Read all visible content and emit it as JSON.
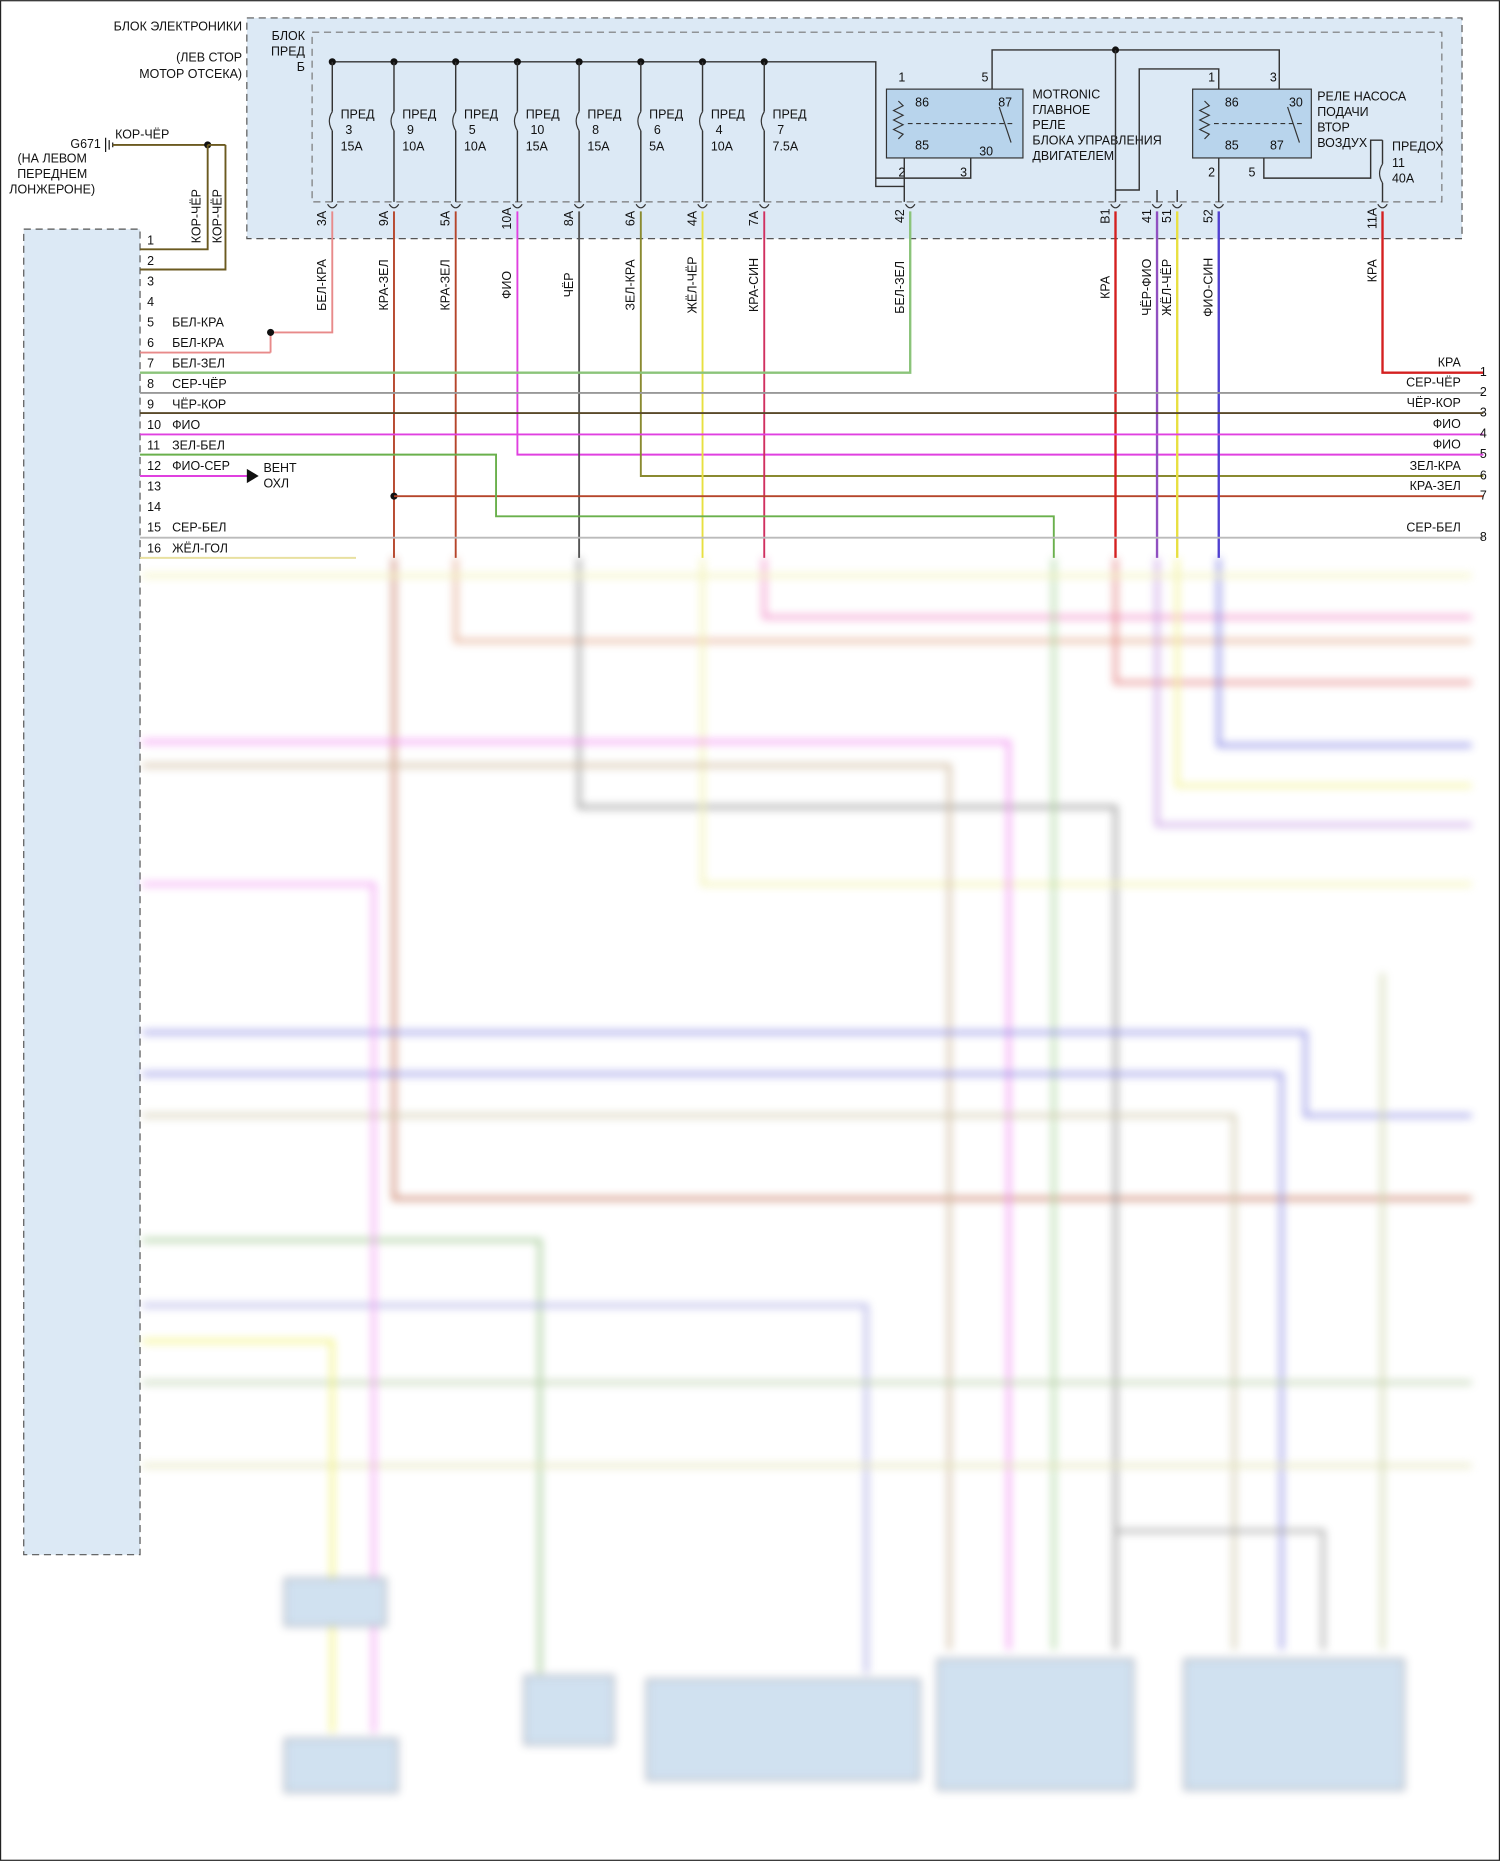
{
  "header": {
    "block_lines": [
      "БЛОК ЭЛЕКТРОНИКИ",
      "(ЛЕВ СТОР",
      "МОТОР ОТСЕКА)"
    ],
    "fuse_box_lines": [
      "БЛОК",
      "ПРЕД",
      "Б"
    ]
  },
  "ground": {
    "id": "G671",
    "location_lines": [
      "(НА ЛЕВОМ",
      "ПЕРЕДНЕМ",
      "ЛОНЖЕРОНЕ)"
    ],
    "wire": "КОР-ЧЁР",
    "branch_wires": [
      "КОР-ЧЁР",
      "КОР-ЧЁР"
    ]
  },
  "fuses": [
    {
      "label": "ПРЕД",
      "number": "3",
      "rating": "15A",
      "pin": "3A",
      "wire": "БЕЛ-КРА"
    },
    {
      "label": "ПРЕД",
      "number": "9",
      "rating": "10A",
      "pin": "9A",
      "wire": "КРА-ЗЕЛ"
    },
    {
      "label": "ПРЕД",
      "number": "5",
      "rating": "10A",
      "pin": "5A",
      "wire": "КРА-ЗЕЛ"
    },
    {
      "label": "ПРЕД",
      "number": "10",
      "rating": "15A",
      "pin": "10A",
      "wire": "ФИО"
    },
    {
      "label": "ПРЕД",
      "number": "8",
      "rating": "15A",
      "pin": "8A",
      "wire": "ЧЁР"
    },
    {
      "label": "ПРЕД",
      "number": "6",
      "rating": "5A",
      "pin": "6A",
      "wire": "ЗЕЛ-КРА"
    },
    {
      "label": "ПРЕД",
      "number": "4",
      "rating": "10A",
      "pin": "4A",
      "wire": "ЖЁЛ-ЧЁР"
    },
    {
      "label": "ПРЕД",
      "number": "7",
      "rating": "7.5A",
      "pin": "7A",
      "wire": "КРА-СИН"
    }
  ],
  "relays": [
    {
      "name_lines": [
        "MOTRONIC",
        "ГЛАВНОЕ",
        "РЕЛЕ",
        "БЛОКА УПРАВЛЕНИЯ",
        "ДВИГАТЕЛЕМ"
      ],
      "pins": [
        "1",
        "5",
        "86",
        "87",
        "85",
        "30",
        "2",
        "3"
      ]
    },
    {
      "name_lines": [
        "РЕЛЕ НАСОСА",
        "ПОДАЧИ",
        "ВТОР",
        "ВОЗДУХ"
      ],
      "pins": [
        "1",
        "3",
        "86",
        "30",
        "85",
        "87",
        "2",
        "5"
      ]
    }
  ],
  "main_fuse": {
    "label": "ПРЕДОХ",
    "number": "11",
    "rating": "40A",
    "pin": "11A",
    "wire": "КРА"
  },
  "outputs": [
    {
      "pin": "42",
      "wire": "БЕЛ-ЗЕЛ"
    },
    {
      "pin": "B1",
      "wire": "КРА"
    },
    {
      "pin": "41",
      "wire": "ЧЁР-ФИО"
    },
    {
      "pin": "51",
      "wire": "ЖЁЛ-ЧЁР"
    },
    {
      "pin": "52",
      "wire": "ФИО-СИН"
    }
  ],
  "left_connector": {
    "pins": [
      {
        "number": "1"
      },
      {
        "number": "2"
      },
      {
        "number": "3"
      },
      {
        "number": "4"
      },
      {
        "number": "5",
        "wire": "БЕЛ-КРА"
      },
      {
        "number": "6",
        "wire": "БЕЛ-КРА"
      },
      {
        "number": "7",
        "wire": "БЕЛ-ЗЕЛ"
      },
      {
        "number": "8",
        "wire": "СЕР-ЧЁР"
      },
      {
        "number": "9",
        "wire": "ЧЁР-КОР"
      },
      {
        "number": "10",
        "wire": "ФИО"
      },
      {
        "number": "11",
        "wire": "ЗЕЛ-БЕЛ"
      },
      {
        "number": "12",
        "wire": "ФИО-СЕР"
      },
      {
        "number": "13"
      },
      {
        "number": "14"
      },
      {
        "number": "15",
        "wire": "СЕР-БЕЛ"
      },
      {
        "number": "16",
        "wire": "ЖЁЛ-ГОЛ"
      }
    ]
  },
  "vent_lines": [
    "ВЕНТ",
    "ОХЛ"
  ],
  "right_connector": {
    "pins": [
      {
        "number": "1",
        "wire": "КРА"
      },
      {
        "number": "2",
        "wire": "СЕР-ЧЁР"
      },
      {
        "number": "3",
        "wire": "ЧЁР-КОР"
      },
      {
        "number": "4",
        "wire": "ФИО"
      },
      {
        "number": "5",
        "wire": "ФИО"
      },
      {
        "number": "6",
        "wire": "ЗЕЛ-КРА"
      },
      {
        "number": "7",
        "wire": "КРА-ЗЕЛ"
      },
      {
        "number": "8",
        "wire": "СЕР-БЕЛ"
      }
    ]
  }
}
